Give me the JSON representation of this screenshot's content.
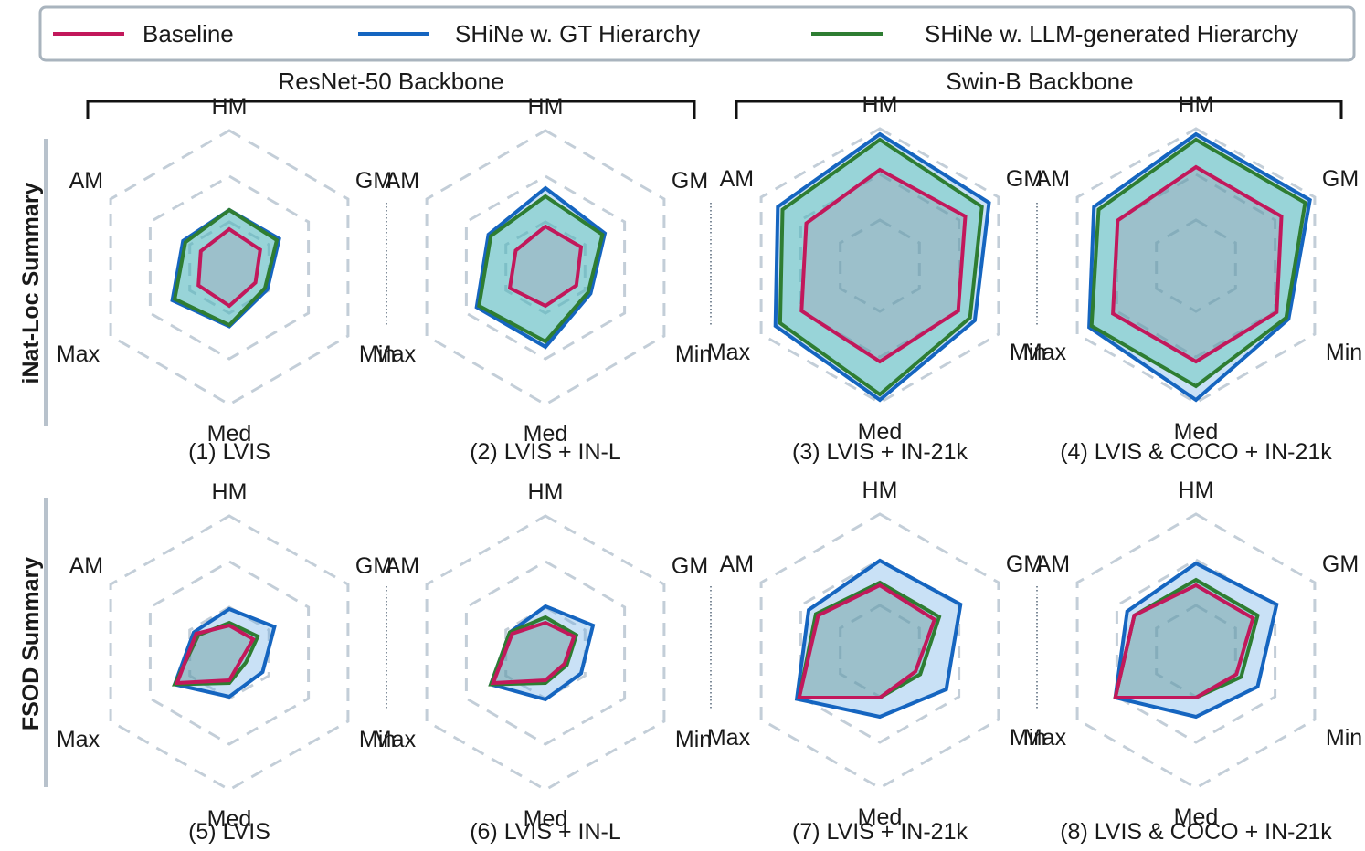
{
  "legend": {
    "items": [
      {
        "name": "Baseline",
        "color": "#c2185b"
      },
      {
        "name": "SHiNe w. GT Hierarchy",
        "color": "#1565c0"
      },
      {
        "name": "SHiNe w. LLM-generated Hierarchy",
        "color": "#2e7d32"
      }
    ]
  },
  "groups": [
    "ResNet-50 Backbone",
    "Swin-B Backbone"
  ],
  "rows": [
    "iNat-Loc Summary",
    "FSOD Summary"
  ],
  "axes": [
    "HM",
    "GM",
    "Min",
    "Med",
    "Max",
    "AM"
  ],
  "chart_data": [
    {
      "type": "radar",
      "title": "(1) LVIS",
      "axes": [
        "HM",
        "GM",
        "Min",
        "Med",
        "Max",
        "AM"
      ],
      "series": [
        {
          "name": "Baseline",
          "values": [
            0.28,
            0.26,
            0.22,
            0.28,
            0.26,
            0.24
          ]
        },
        {
          "name": "SHiNe w. GT Hierarchy",
          "values": [
            0.42,
            0.42,
            0.32,
            0.43,
            0.48,
            0.39
          ]
        },
        {
          "name": "SHiNe w. LLM-generated Hierarchy",
          "values": [
            0.42,
            0.4,
            0.3,
            0.42,
            0.46,
            0.37
          ]
        }
      ]
    },
    {
      "type": "radar",
      "title": "(2) LVIS + IN-L",
      "axes": [
        "HM",
        "GM",
        "Min",
        "Med",
        "Max",
        "AM"
      ],
      "series": [
        {
          "name": "Baseline",
          "values": [
            0.3,
            0.3,
            0.26,
            0.28,
            0.3,
            0.25
          ]
        },
        {
          "name": "SHiNe w. GT Hierarchy",
          "values": [
            0.58,
            0.5,
            0.38,
            0.58,
            0.58,
            0.48
          ]
        },
        {
          "name": "SHiNe w. LLM-generated Hierarchy",
          "values": [
            0.52,
            0.48,
            0.36,
            0.54,
            0.56,
            0.46
          ]
        }
      ]
    },
    {
      "type": "radar",
      "title": "(3) LVIS + IN-21k",
      "axes": [
        "HM",
        "GM",
        "Min",
        "Med",
        "Max",
        "AM"
      ],
      "series": [
        {
          "name": "Baseline",
          "values": [
            0.7,
            0.72,
            0.66,
            0.7,
            0.66,
            0.62
          ]
        },
        {
          "name": "SHiNe w. GT Hierarchy",
          "values": [
            0.96,
            0.92,
            0.8,
            0.98,
            0.88,
            0.86
          ]
        },
        {
          "name": "SHiNe w. LLM-generated Hierarchy",
          "values": [
            0.92,
            0.86,
            0.76,
            0.94,
            0.84,
            0.82
          ]
        }
      ]
    },
    {
      "type": "radar",
      "title": "(4) LVIS & COCO + IN-21k",
      "axes": [
        "HM",
        "GM",
        "Min",
        "Med",
        "Max",
        "AM"
      ],
      "series": [
        {
          "name": "Baseline",
          "values": [
            0.72,
            0.72,
            0.68,
            0.7,
            0.7,
            0.66
          ]
        },
        {
          "name": "SHiNe w. GT Hierarchy",
          "values": [
            0.96,
            0.96,
            0.78,
            0.98,
            0.9,
            0.86
          ]
        },
        {
          "name": "SHiNe w. LLM-generated Hierarchy",
          "values": [
            0.92,
            0.92,
            0.76,
            0.88,
            0.88,
            0.82
          ]
        }
      ]
    },
    {
      "type": "radar",
      "title": "(5) LVIS",
      "axes": [
        "HM",
        "GM",
        "Min",
        "Med",
        "Max",
        "AM"
      ],
      "series": [
        {
          "name": "Baseline",
          "values": [
            0.2,
            0.2,
            0.1,
            0.2,
            0.44,
            0.28
          ]
        },
        {
          "name": "SHiNe w. GT Hierarchy",
          "values": [
            0.32,
            0.38,
            0.28,
            0.32,
            0.46,
            0.3
          ]
        },
        {
          "name": "SHiNe w. LLM-generated Hierarchy",
          "values": [
            0.22,
            0.24,
            0.14,
            0.22,
            0.46,
            0.26
          ]
        }
      ]
    },
    {
      "type": "radar",
      "title": "(6) LVIS + IN-L",
      "axes": [
        "HM",
        "GM",
        "Min",
        "Med",
        "Max",
        "AM"
      ],
      "series": [
        {
          "name": "Baseline",
          "values": [
            0.22,
            0.24,
            0.16,
            0.2,
            0.44,
            0.28
          ]
        },
        {
          "name": "SHiNe w. GT Hierarchy",
          "values": [
            0.34,
            0.4,
            0.3,
            0.34,
            0.46,
            0.3
          ]
        },
        {
          "name": "SHiNe w. LLM-generated Hierarchy",
          "values": [
            0.26,
            0.26,
            0.18,
            0.22,
            0.46,
            0.3
          ]
        }
      ]
    },
    {
      "type": "radar",
      "title": "(7) LVIS + IN-21k",
      "axes": [
        "HM",
        "GM",
        "Min",
        "Med",
        "Max",
        "AM"
      ],
      "series": [
        {
          "name": "Baseline",
          "values": [
            0.48,
            0.46,
            0.3,
            0.34,
            0.68,
            0.52
          ]
        },
        {
          "name": "SHiNe w. GT Hierarchy",
          "values": [
            0.66,
            0.68,
            0.56,
            0.48,
            0.7,
            0.6
          ]
        },
        {
          "name": "SHiNe w. LLM-generated Hierarchy",
          "values": [
            0.5,
            0.5,
            0.34,
            0.34,
            0.68,
            0.54
          ]
        }
      ]
    },
    {
      "type": "radar",
      "title": "(8) LVIS & COCO + IN-21k",
      "axes": [
        "HM",
        "GM",
        "Min",
        "Med",
        "Max",
        "AM"
      ],
      "series": [
        {
          "name": "Baseline",
          "values": [
            0.48,
            0.48,
            0.34,
            0.34,
            0.68,
            0.52
          ]
        },
        {
          "name": "SHiNe w. GT Hierarchy",
          "values": [
            0.64,
            0.68,
            0.52,
            0.48,
            0.68,
            0.58
          ]
        },
        {
          "name": "SHiNe w. LLM-generated Hierarchy",
          "values": [
            0.52,
            0.52,
            0.38,
            0.34,
            0.68,
            0.52
          ]
        }
      ]
    }
  ]
}
